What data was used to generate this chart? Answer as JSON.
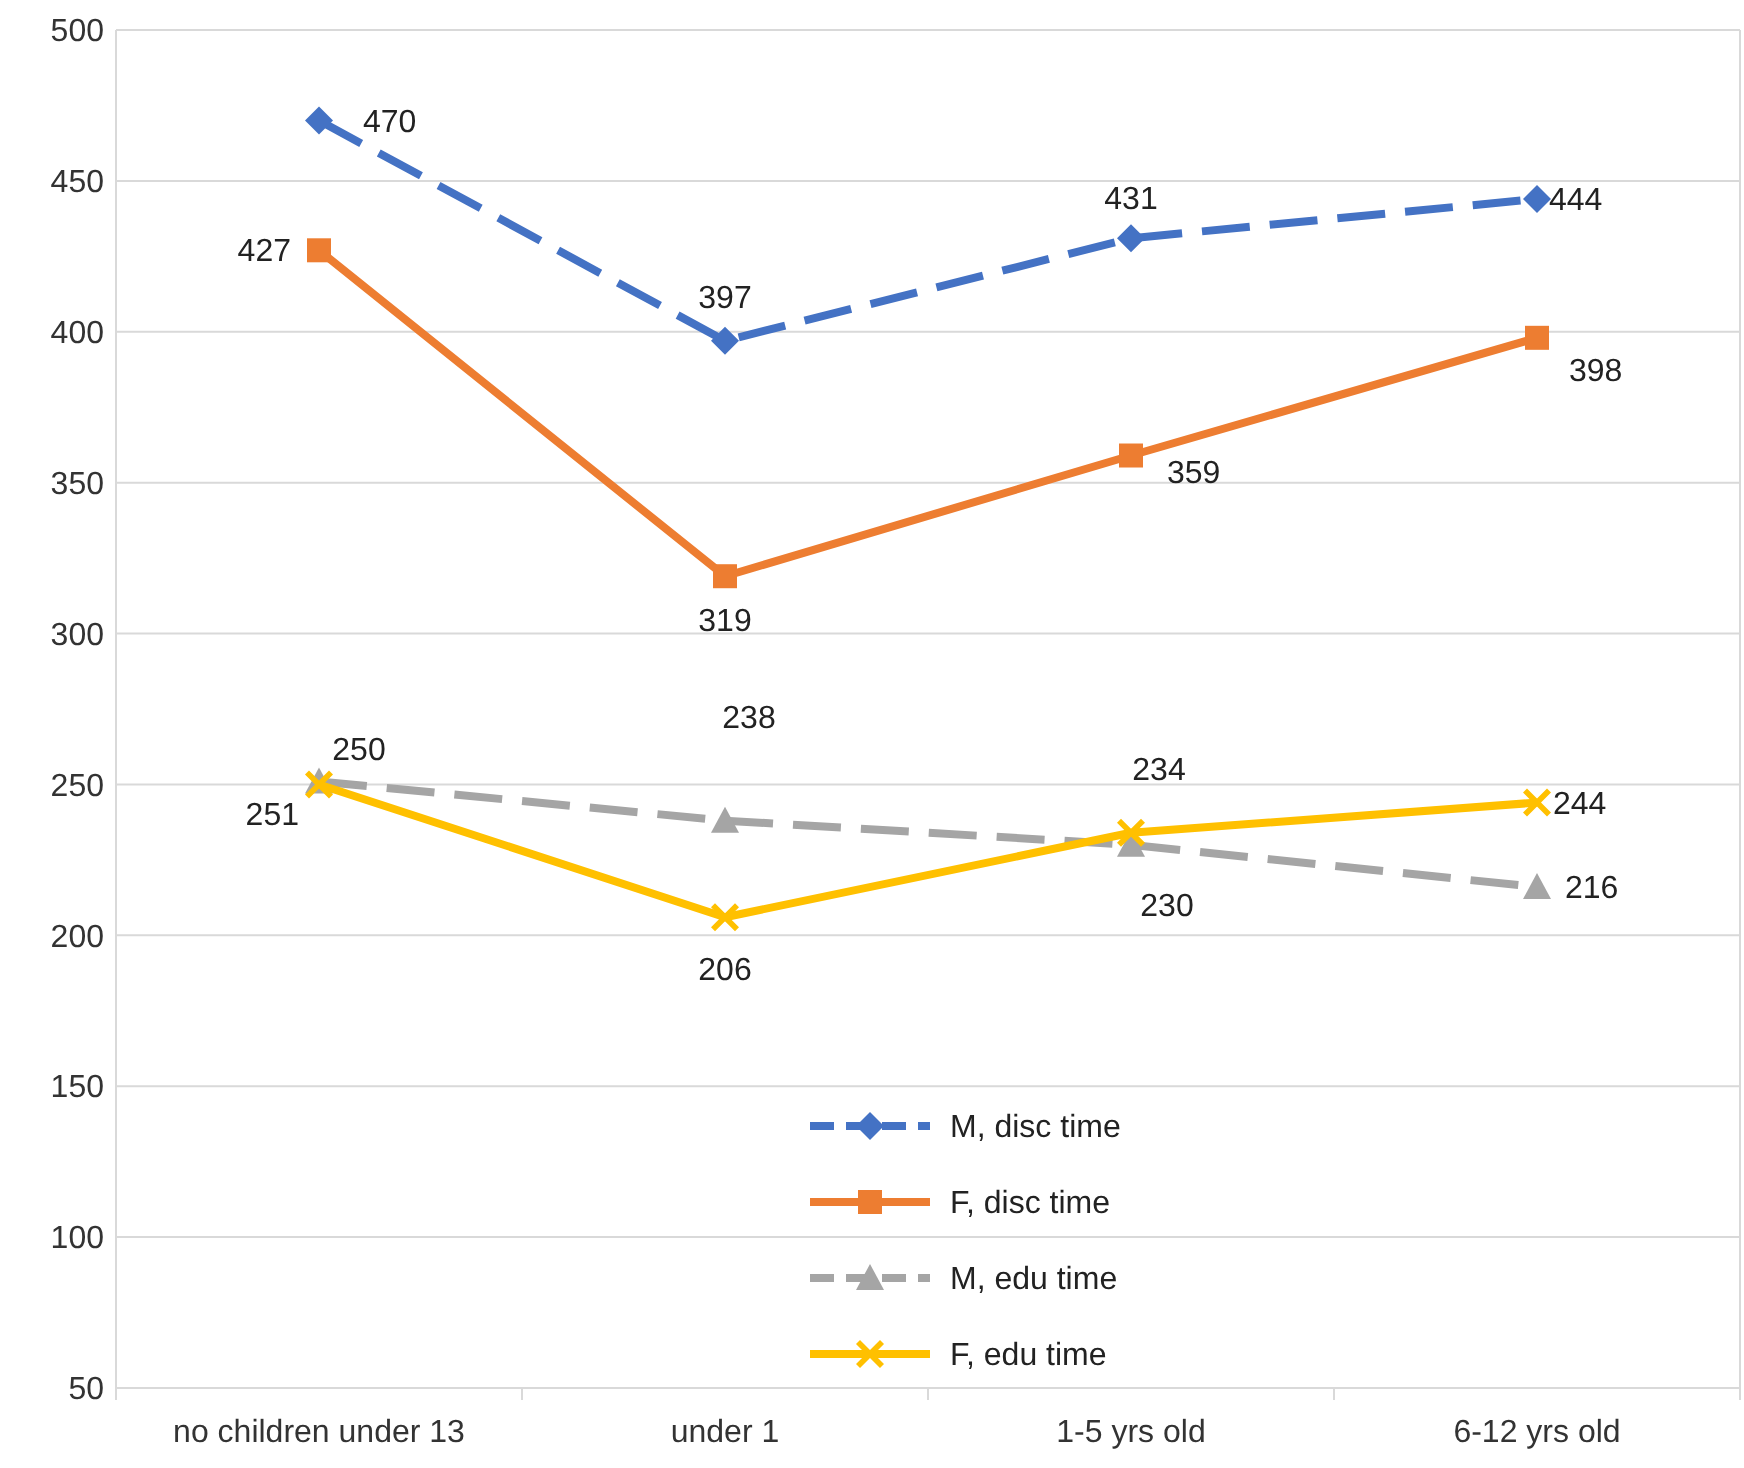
{
  "chart_data": {
    "type": "line",
    "categories": [
      "no children under 13",
      "under 1",
      "1-5 yrs old",
      "6-12 yrs old"
    ],
    "series": [
      {
        "name": "M, disc time",
        "color": "#4472c4",
        "values": [
          470,
          397,
          431,
          444
        ],
        "marker": "diamond",
        "line_style": "dashed"
      },
      {
        "name": "F, disc time",
        "color": "#ed7d31",
        "values": [
          427,
          319,
          359,
          398
        ],
        "marker": "square",
        "line_style": "solid"
      },
      {
        "name": "M, edu time",
        "color": "#a5a5a5",
        "values": [
          251,
          238,
          230,
          216
        ],
        "marker": "triangle",
        "line_style": "dashed"
      },
      {
        "name": "F, edu time",
        "color": "#ffc000",
        "values": [
          250,
          206,
          234,
          244
        ],
        "marker": "cross",
        "line_style": "solid"
      }
    ],
    "ylim": [
      50,
      500
    ],
    "yticks": [
      50,
      100,
      150,
      200,
      250,
      300,
      350,
      400,
      450,
      500
    ],
    "grid": "y",
    "legend": "bottom",
    "data_labels": true
  }
}
